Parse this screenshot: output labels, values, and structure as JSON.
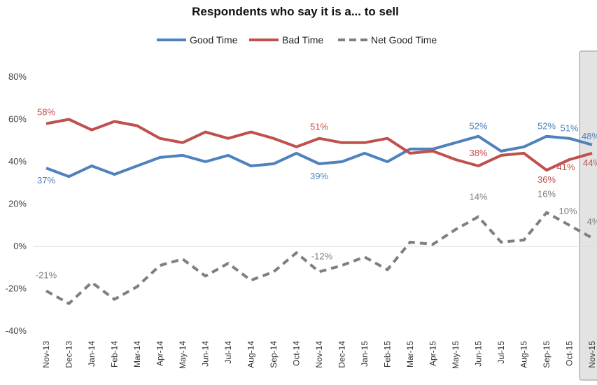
{
  "chart_data": {
    "type": "line",
    "title": "Respondents who say it is a... to sell",
    "xlabel": "",
    "ylabel": "",
    "categories": [
      "Nov-13",
      "Dec-13",
      "Jan-14",
      "Feb-14",
      "Mar-14",
      "Apr-14",
      "May-14",
      "Jun-14",
      "Jul-14",
      "Aug-14",
      "Sep-14",
      "Oct-14",
      "Nov-14",
      "Dec-14",
      "Jan-15",
      "Feb-15",
      "Mar-15",
      "Apr-15",
      "May-15",
      "Jun-15",
      "Jul-15",
      "Aug-15",
      "Sep-15",
      "Oct-15",
      "Nov-15"
    ],
    "ylim": [
      -40,
      80
    ],
    "yticks": [
      -40,
      -20,
      0,
      20,
      40,
      60,
      80
    ],
    "ytick_labels": [
      "-40%",
      "-20%",
      "0%",
      "20%",
      "40%",
      "60%",
      "80%"
    ],
    "grid": false,
    "legend_position": "top",
    "highlight_category": "Nov-15",
    "series": [
      {
        "name": "Good Time",
        "color": "#4f81bd",
        "style": "solid",
        "values": [
          37,
          33,
          38,
          34,
          38,
          42,
          43,
          40,
          43,
          38,
          39,
          44,
          39,
          40,
          44,
          40,
          46,
          46,
          49,
          52,
          45,
          47,
          52,
          51,
          48
        ]
      },
      {
        "name": "Bad Time",
        "color": "#c0504d",
        "style": "solid",
        "values": [
          58,
          60,
          55,
          59,
          57,
          51,
          49,
          54,
          51,
          54,
          51,
          47,
          51,
          49,
          49,
          51,
          44,
          45,
          41,
          38,
          43,
          44,
          36,
          41,
          44
        ]
      },
      {
        "name": "Net Good Time",
        "color": "#7f7f7f",
        "style": "dashed",
        "values": [
          -21,
          -27,
          -17,
          -25,
          -19,
          -9,
          -6,
          -14,
          -8,
          -16,
          -12,
          -3,
          -12,
          -9,
          -5,
          -11,
          2,
          1,
          8,
          14,
          2,
          3,
          16,
          10,
          4
        ]
      }
    ],
    "data_labels": [
      {
        "series": 0,
        "index": 0,
        "text": "37%"
      },
      {
        "series": 0,
        "index": 12,
        "text": "39%"
      },
      {
        "series": 0,
        "index": 19,
        "text": "52%"
      },
      {
        "series": 0,
        "index": 22,
        "text": "52%"
      },
      {
        "series": 0,
        "index": 23,
        "text": "51%"
      },
      {
        "series": 0,
        "index": 24,
        "text": "48%"
      },
      {
        "series": 1,
        "index": 0,
        "text": "58%"
      },
      {
        "series": 1,
        "index": 12,
        "text": "51%"
      },
      {
        "series": 1,
        "index": 19,
        "text": "38%"
      },
      {
        "series": 1,
        "index": 22,
        "text": "36%"
      },
      {
        "series": 1,
        "index": 23,
        "text": "41%"
      },
      {
        "series": 1,
        "index": 24,
        "text": "44%"
      },
      {
        "series": 2,
        "index": 0,
        "text": "-21%"
      },
      {
        "series": 2,
        "index": 12,
        "text": "-12%"
      },
      {
        "series": 2,
        "index": 19,
        "text": "14%"
      },
      {
        "series": 2,
        "index": 22,
        "text": "16%"
      },
      {
        "series": 2,
        "index": 23,
        "text": "10%"
      },
      {
        "series": 2,
        "index": 24,
        "text": "4%"
      }
    ]
  }
}
